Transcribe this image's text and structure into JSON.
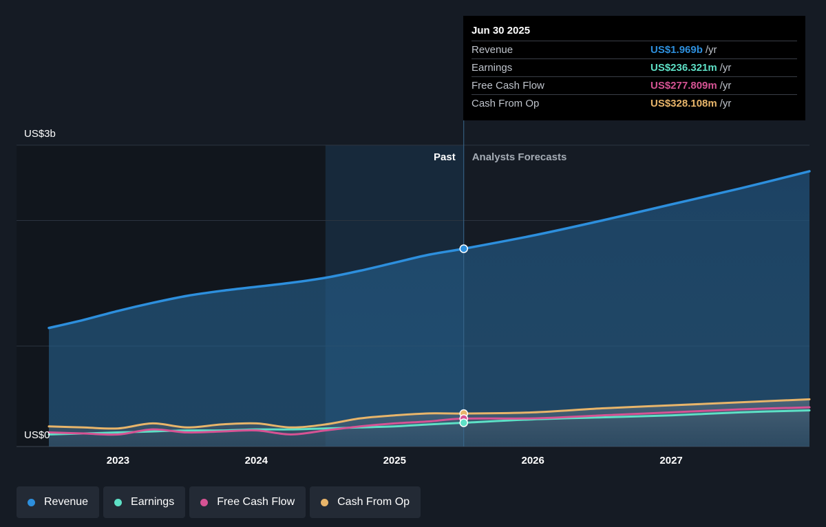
{
  "tooltip": {
    "date": "Jun 30 2025",
    "rows": [
      {
        "label": "Revenue",
        "value": "US$1.969b",
        "unit": "/yr",
        "color": "#2d8fdd"
      },
      {
        "label": "Earnings",
        "value": "US$236.321m",
        "unit": "/yr",
        "color": "#5ee0c6"
      },
      {
        "label": "Free Cash Flow",
        "value": "US$277.809m",
        "unit": "/yr",
        "color": "#d65394"
      },
      {
        "label": "Cash From Op",
        "value": "US$328.108m",
        "unit": "/yr",
        "color": "#e8b56a"
      }
    ]
  },
  "legend": [
    {
      "label": "Revenue",
      "color": "#2d8fdd"
    },
    {
      "label": "Earnings",
      "color": "#5ee0c6"
    },
    {
      "label": "Free Cash Flow",
      "color": "#d65394"
    },
    {
      "label": "Cash From Op",
      "color": "#e8b56a"
    }
  ],
  "chart_data": {
    "type": "line",
    "title": "",
    "y_top_label": "US$3b",
    "y_bottom_label": "US$0",
    "ylim": [
      0,
      3.0
    ],
    "y_unit": "US$ billions",
    "x_ticks": [
      {
        "year": 2023,
        "label": "2023"
      },
      {
        "year": 2024,
        "label": "2024"
      },
      {
        "year": 2025,
        "label": "2025"
      },
      {
        "year": 2026,
        "label": "2026"
      },
      {
        "year": 2027,
        "label": "2027"
      }
    ],
    "xlim": [
      2022.5,
      2028.0
    ],
    "past_label": "Past",
    "forecast_label": "Analysts Forecasts",
    "divider_x": 2025.5,
    "highlight_start_x": 2024.5,
    "grid": true,
    "legend_position": "bottom-left",
    "series": [
      {
        "name": "Revenue",
        "color": "#2d8fdd",
        "area": true,
        "points": [
          [
            2022.5,
            1.18
          ],
          [
            2022.75,
            1.26
          ],
          [
            2023.0,
            1.35
          ],
          [
            2023.25,
            1.43
          ],
          [
            2023.5,
            1.5
          ],
          [
            2023.75,
            1.55
          ],
          [
            2024.0,
            1.59
          ],
          [
            2024.25,
            1.63
          ],
          [
            2024.5,
            1.68
          ],
          [
            2024.75,
            1.75
          ],
          [
            2025.0,
            1.83
          ],
          [
            2025.25,
            1.91
          ],
          [
            2025.5,
            1.969
          ],
          [
            2026.0,
            2.1
          ],
          [
            2026.5,
            2.25
          ],
          [
            2027.0,
            2.41
          ],
          [
            2027.5,
            2.57
          ],
          [
            2028.0,
            2.74
          ]
        ]
      },
      {
        "name": "Earnings",
        "color": "#5ee0c6",
        "area": false,
        "points": [
          [
            2022.5,
            0.12
          ],
          [
            2022.75,
            0.13
          ],
          [
            2023.0,
            0.14
          ],
          [
            2023.25,
            0.15
          ],
          [
            2023.5,
            0.16
          ],
          [
            2023.75,
            0.16
          ],
          [
            2024.0,
            0.17
          ],
          [
            2024.25,
            0.17
          ],
          [
            2024.5,
            0.18
          ],
          [
            2024.75,
            0.19
          ],
          [
            2025.0,
            0.2
          ],
          [
            2025.25,
            0.22
          ],
          [
            2025.5,
            0.236
          ],
          [
            2026.0,
            0.27
          ],
          [
            2026.5,
            0.29
          ],
          [
            2027.0,
            0.31
          ],
          [
            2027.5,
            0.34
          ],
          [
            2028.0,
            0.36
          ]
        ]
      },
      {
        "name": "Free Cash Flow",
        "color": "#d65394",
        "area": false,
        "points": [
          [
            2022.5,
            0.14
          ],
          [
            2022.75,
            0.13
          ],
          [
            2023.0,
            0.12
          ],
          [
            2023.25,
            0.17
          ],
          [
            2023.5,
            0.14
          ],
          [
            2023.75,
            0.15
          ],
          [
            2024.0,
            0.16
          ],
          [
            2024.25,
            0.12
          ],
          [
            2024.5,
            0.16
          ],
          [
            2024.75,
            0.2
          ],
          [
            2025.0,
            0.23
          ],
          [
            2025.25,
            0.25
          ],
          [
            2025.5,
            0.278
          ],
          [
            2026.0,
            0.28
          ],
          [
            2026.5,
            0.31
          ],
          [
            2027.0,
            0.34
          ],
          [
            2027.5,
            0.37
          ],
          [
            2028.0,
            0.39
          ]
        ]
      },
      {
        "name": "Cash From Op",
        "color": "#e8b56a",
        "area": false,
        "points": [
          [
            2022.5,
            0.2
          ],
          [
            2022.75,
            0.19
          ],
          [
            2023.0,
            0.18
          ],
          [
            2023.25,
            0.23
          ],
          [
            2023.5,
            0.19
          ],
          [
            2023.75,
            0.22
          ],
          [
            2024.0,
            0.23
          ],
          [
            2024.25,
            0.19
          ],
          [
            2024.5,
            0.22
          ],
          [
            2024.75,
            0.28
          ],
          [
            2025.0,
            0.31
          ],
          [
            2025.25,
            0.33
          ],
          [
            2025.5,
            0.328
          ],
          [
            2026.0,
            0.34
          ],
          [
            2026.5,
            0.38
          ],
          [
            2027.0,
            0.41
          ],
          [
            2027.5,
            0.44
          ],
          [
            2028.0,
            0.47
          ]
        ]
      }
    ]
  }
}
